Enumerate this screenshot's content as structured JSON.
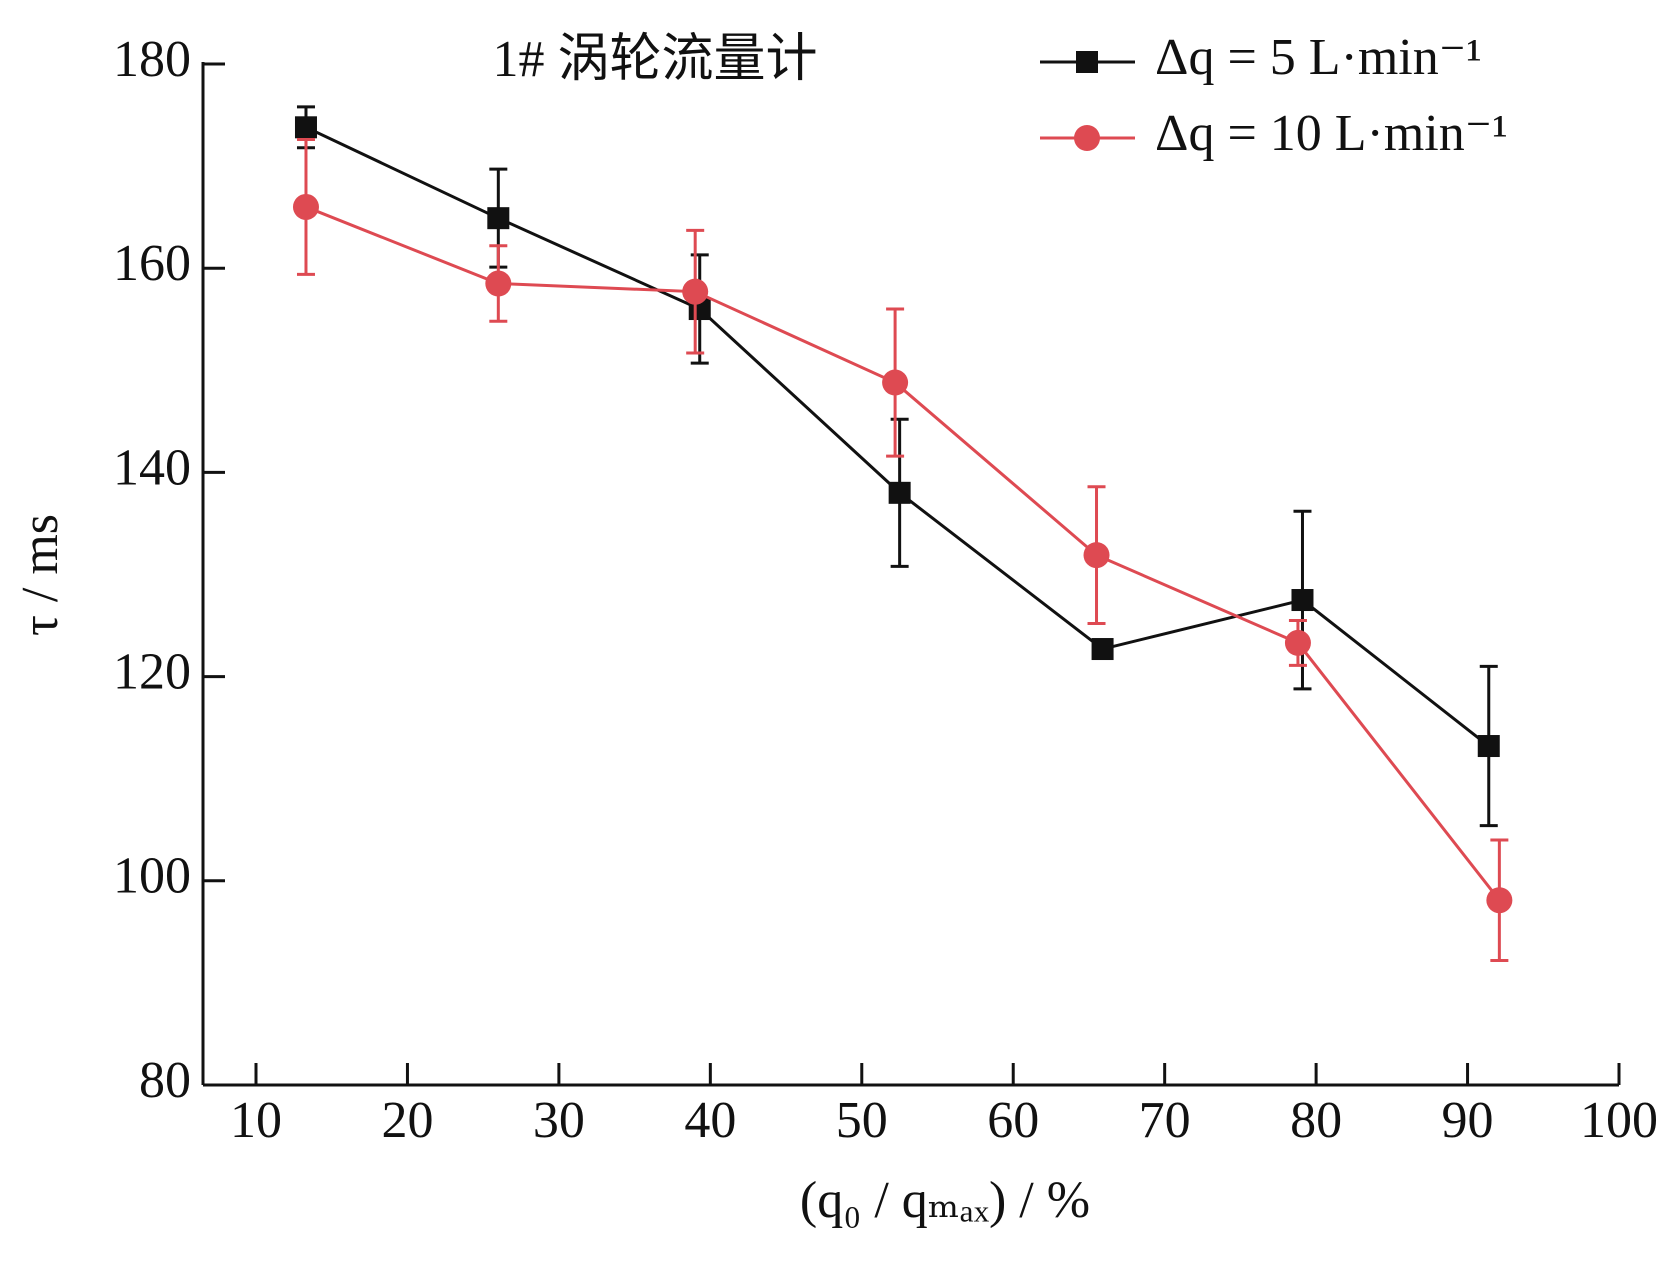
{
  "chart_data": {
    "type": "line",
    "title": "1# 涡轮流量计",
    "x_label": "(q₀ / qₘₐₓ) / %",
    "y_label": "τ / ms",
    "xlim": [
      6.5,
      100
    ],
    "xticks": [
      10,
      20,
      30,
      40,
      50,
      60,
      70,
      80,
      90,
      100
    ],
    "ylim": [
      80,
      180
    ],
    "yticks": [
      80,
      100,
      120,
      140,
      160,
      180
    ],
    "legend": "upper right",
    "series": [
      {
        "name": "Δq = 5 L·min⁻¹",
        "color": "#111111",
        "marker": "square",
        "x": [
          13.3,
          26.0,
          39.3,
          52.5,
          65.9,
          79.1,
          91.4
        ],
        "values": [
          173.8,
          164.9,
          156.0,
          138.0,
          122.7,
          127.5,
          113.2
        ],
        "errors": [
          2.0,
          4.8,
          5.3,
          7.2,
          0.5,
          8.7,
          7.8
        ]
      },
      {
        "name": "Δq = 10 L·min⁻¹",
        "color": "#de4a52",
        "marker": "circle",
        "x": [
          13.3,
          26.0,
          39.0,
          52.2,
          65.5,
          78.8,
          92.1
        ],
        "values": [
          166.0,
          158.5,
          157.7,
          148.8,
          131.9,
          123.3,
          98.1
        ],
        "errors": [
          6.6,
          3.7,
          6.0,
          7.2,
          6.7,
          2.2,
          5.9
        ]
      }
    ]
  }
}
